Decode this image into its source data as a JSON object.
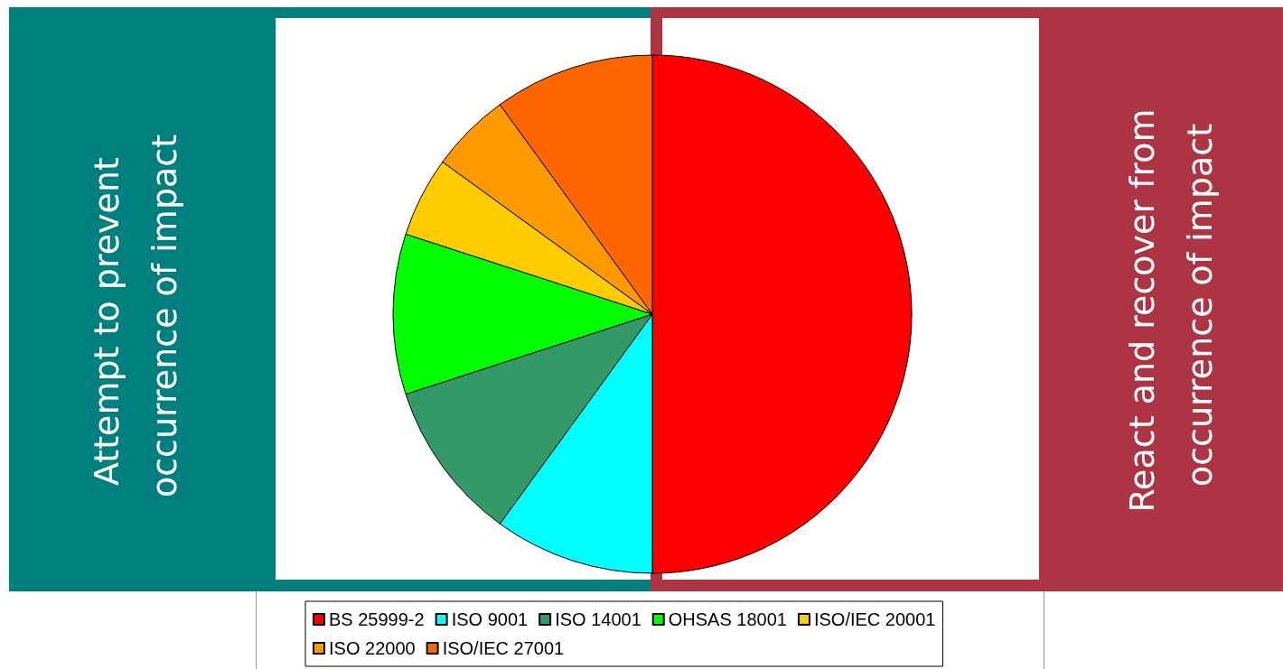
{
  "chart_data": {
    "type": "pie",
    "categories": [
      "BS 25999-2",
      "ISO 9001",
      "ISO 14001",
      "OHSAS 18001",
      "ISO/IEC 20001",
      "ISO 22000",
      "ISO/IEC 27001"
    ],
    "values": [
      50,
      10,
      10,
      10,
      5,
      5,
      10
    ],
    "colors": [
      "#ff0000",
      "#00ffff",
      "#339966",
      "#00ff00",
      "#ffcc00",
      "#ff9900",
      "#ff6600"
    ],
    "legend": "bottom",
    "annotations": [
      "Attempt to prevent occurrence of impact",
      "React and recover from occurrence of impact"
    ]
  }
}
